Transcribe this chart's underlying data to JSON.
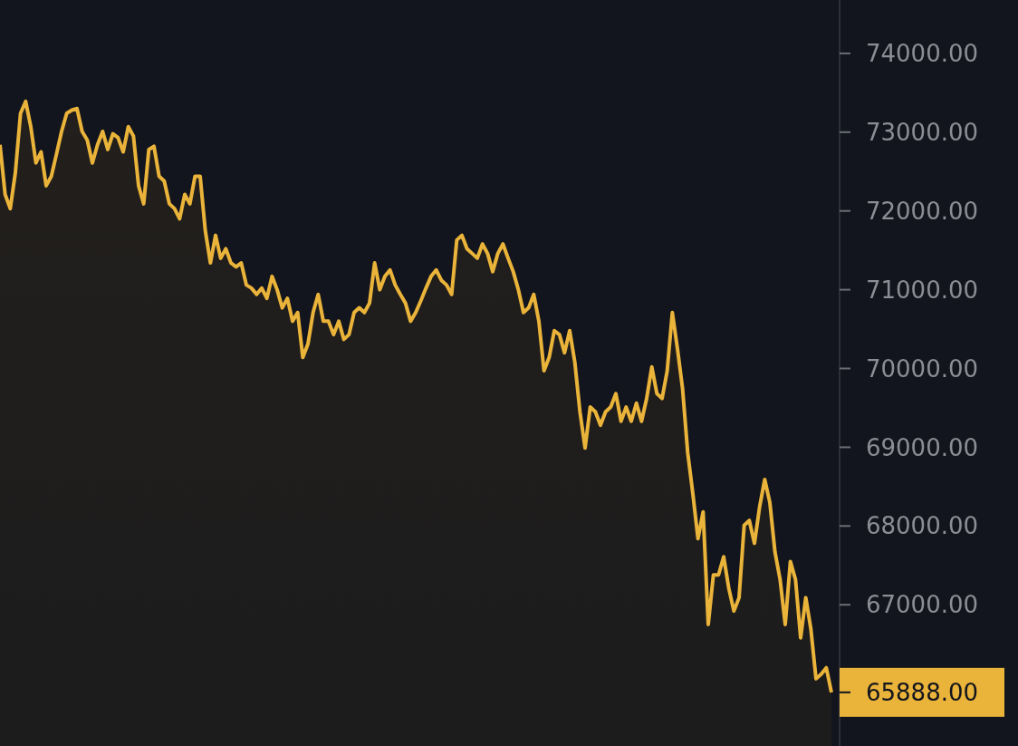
{
  "chart_data": {
    "type": "area",
    "categories": [
      null,
      null,
      null,
      null,
      null,
      null,
      null,
      null,
      null,
      null,
      null,
      null,
      null,
      null,
      null,
      null,
      null,
      null,
      null,
      null,
      null,
      null,
      null,
      null,
      null,
      null,
      null,
      null,
      null,
      null,
      null,
      null,
      null,
      null,
      null,
      null,
      null,
      null,
      null,
      null,
      null,
      null,
      null,
      null,
      null,
      null,
      null,
      null,
      null,
      null,
      null,
      null,
      null,
      null,
      null,
      null,
      null,
      null,
      null,
      null,
      null,
      null,
      null,
      null,
      null,
      null,
      null,
      null,
      null,
      null,
      null,
      null,
      null,
      null,
      null,
      null,
      null,
      null,
      null,
      null,
      null,
      null,
      null,
      null,
      null,
      null,
      null,
      null,
      null,
      null,
      null,
      null,
      null,
      null,
      null,
      null,
      null,
      null,
      null,
      null,
      null,
      null,
      null,
      null,
      null,
      null,
      null,
      null,
      null,
      null,
      null,
      null,
      null,
      null,
      null,
      null,
      null,
      null,
      null,
      null,
      null,
      null,
      null,
      null,
      null,
      null,
      null,
      null,
      null,
      null,
      null,
      null,
      null,
      null,
      null,
      null,
      null,
      null,
      null,
      null,
      null,
      null,
      null,
      null,
      null,
      null,
      null,
      null,
      null,
      null,
      null,
      null,
      null,
      null,
      null,
      null,
      null,
      null,
      null,
      null,
      null,
      null,
      null
    ],
    "series": [
      {
        "color": "#eab33a",
        "values": [
          72840,
          72210,
          72030,
          72490,
          73240,
          73390,
          73070,
          72610,
          72750,
          72320,
          72440,
          72720,
          73010,
          73240,
          73280,
          73300,
          73010,
          72900,
          72610,
          72840,
          73010,
          72780,
          72980,
          72930,
          72750,
          73070,
          72950,
          72320,
          72090,
          72780,
          72820,
          72440,
          72380,
          72090,
          72030,
          71900,
          72210,
          72090,
          72440,
          72440,
          71750,
          71340,
          71690,
          71400,
          71520,
          71340,
          71290,
          71340,
          71060,
          71020,
          70940,
          71020,
          70890,
          71170,
          71000,
          70770,
          70890,
          70600,
          70710,
          70140,
          70310,
          70710,
          70940,
          70600,
          70600,
          70430,
          70600,
          70370,
          70430,
          70710,
          70770,
          70710,
          70830,
          71340,
          71000,
          71170,
          71250,
          71060,
          70940,
          70830,
          70600,
          70710,
          70860,
          71020,
          71170,
          71250,
          71120,
          71060,
          70940,
          71630,
          71690,
          71520,
          71460,
          71400,
          71580,
          71460,
          71230,
          71460,
          71580,
          71400,
          71230,
          71000,
          70710,
          70770,
          70940,
          70600,
          69970,
          70140,
          70480,
          70430,
          70200,
          70480,
          70080,
          69450,
          68990,
          69510,
          69450,
          69280,
          69450,
          69510,
          69680,
          69330,
          69510,
          69330,
          69560,
          69330,
          69620,
          70020,
          69680,
          69620,
          69970,
          70710,
          70250,
          69740,
          68930,
          68410,
          67840,
          68180,
          66750,
          67380,
          67380,
          67610,
          67210,
          66920,
          67090,
          68010,
          68070,
          67780,
          68240,
          68590,
          68300,
          67670,
          67320,
          66750,
          67550,
          67320,
          66580,
          67090,
          66690,
          66060,
          66120,
          66200,
          65888
        ]
      }
    ],
    "ylim": [
      65207,
      74678
    ],
    "yticks": [
      {
        "value": 67000,
        "label": "67000.00"
      },
      {
        "value": 68000,
        "label": "68000.00"
      },
      {
        "value": 69000,
        "label": "69000.00"
      },
      {
        "value": 70000,
        "label": "70000.00"
      },
      {
        "value": 71000,
        "label": "71000.00"
      },
      {
        "value": 72000,
        "label": "72000.00"
      },
      {
        "value": 73000,
        "label": "73000.00"
      },
      {
        "value": 74000,
        "label": "74000.00"
      }
    ],
    "tick_labels": "y",
    "annotations": [
      "65888.00"
    ]
  }
}
